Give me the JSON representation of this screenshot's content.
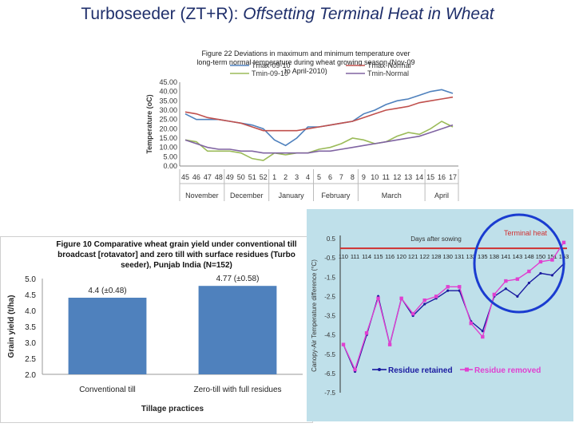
{
  "slide": {
    "title_main": "Turboseeder (ZT+R): ",
    "title_sub": "Offsetting Terminal Heat in Wheat"
  },
  "chart_data": [
    {
      "type": "line",
      "title": "Figure 22 Deviations in maximum and minimum temperature over long-term normal temperature during wheat growing season (Nov-09 to April-2010)",
      "title_lines": [
        "Figure 22 Deviations in maximum and minimum temperature over",
        "long-term normal temperature during wheat growing season (Nov-09",
        "to April-2010)"
      ],
      "ylabel": "Temperature (oC)",
      "ylim": [
        0,
        45
      ],
      "y_ticks": [
        "0.00",
        "5.00",
        "10.00",
        "15.00",
        "20.00",
        "25.00",
        "30.00",
        "35.00",
        "40.00",
        "45.00"
      ],
      "x": [
        "45",
        "46",
        "47",
        "48",
        "49",
        "50",
        "51",
        "52",
        "1",
        "2",
        "3",
        "4",
        "5",
        "6",
        "7",
        "8",
        "9",
        "10",
        "11",
        "12",
        "13",
        "14",
        "15",
        "16",
        "17"
      ],
      "months": [
        "November",
        "December",
        "January",
        "February",
        "March",
        "April"
      ],
      "series": [
        {
          "name": "Tmax-09-10",
          "color": "#4f81bd",
          "values": [
            28,
            25,
            25,
            25,
            24,
            23,
            22,
            20,
            14,
            11,
            15,
            21,
            21,
            22,
            23,
            24,
            28,
            30,
            33,
            35,
            36,
            38,
            40,
            41,
            39
          ]
        },
        {
          "name": "Tmax-Normal",
          "color": "#c0504d",
          "values": [
            29,
            28,
            26,
            25,
            24,
            23,
            21,
            19,
            19,
            19,
            19,
            20,
            21,
            22,
            23,
            24,
            26,
            28,
            30,
            31,
            32,
            34,
            35,
            36,
            37
          ]
        },
        {
          "name": "Tmin-09-10",
          "color": "#9bbb59",
          "values": [
            14,
            13,
            8,
            8,
            8,
            7,
            4,
            3,
            7,
            6,
            7,
            7,
            9,
            10,
            12,
            15,
            14,
            12,
            13,
            16,
            18,
            17,
            20,
            24,
            21
          ]
        },
        {
          "name": "Tmin-Normal",
          "color": "#8064a2",
          "values": [
            14,
            12,
            10,
            9,
            9,
            8,
            8,
            7,
            7,
            7,
            7,
            7,
            8,
            8,
            9,
            10,
            11,
            12,
            13,
            14,
            15,
            16,
            18,
            20,
            22
          ]
        }
      ]
    },
    {
      "type": "bar",
      "title": "Figure 10 Comparative wheat grain yield under conventional till broadcast [rotavator] and zero till with surface residues (Turbo seeder), Punjab India (N=152)",
      "title_lines": [
        "Figure 10 Comparative wheat grain yield under conventional till",
        "broadcast [rotavator] and zero till with surface residues (Turbo",
        "seeder), Punjab India (N=152)"
      ],
      "categories": [
        "Conventional till",
        "Zero-till with full residues"
      ],
      "values": [
        4.4,
        4.77
      ],
      "data_labels": [
        "4.4 (±0.48)",
        "4.77 (±0.58)"
      ],
      "ylabel": "Grain yield (t/ha)",
      "xlabel": "Tillage practices",
      "ylim": [
        2.0,
        5.0
      ],
      "y_ticks": [
        "2.0",
        "2.5",
        "3.0",
        "3.5",
        "4.0",
        "4.5",
        "5.0"
      ],
      "color": "#4f81bd"
    },
    {
      "type": "line",
      "xlabel": "Days after sowing",
      "ylabel": "Canopy-Air Temperature difference (°C)",
      "ylim": [
        -7.5,
        0.5
      ],
      "y_ticks": [
        "0.5",
        "-0.5",
        "-1.5",
        "-2.5",
        "-3.5",
        "-4.5",
        "-5.5",
        "-6.5",
        "-7.5"
      ],
      "x": [
        "110",
        "111",
        "114",
        "115",
        "116",
        "120",
        "121",
        "122",
        "128",
        "130",
        "131",
        "132",
        "135",
        "138",
        "141",
        "143",
        "148",
        "150",
        "151",
        "153"
      ],
      "annotation": "Terminal heat",
      "series": [
        {
          "name": "Residue retained",
          "color": "#1a1aa0",
          "values": [
            -5.0,
            -6.4,
            -4.5,
            -2.5,
            -5.0,
            -2.6,
            -3.5,
            -2.9,
            -2.6,
            -2.2,
            -2.2,
            -3.8,
            -4.3,
            -2.5,
            -2.1,
            -2.5,
            -1.8,
            -1.3,
            -1.4,
            -0.8
          ]
        },
        {
          "name": "Residue removed",
          "color": "#e040d0",
          "values": [
            -5.0,
            -6.3,
            -4.4,
            -2.6,
            -5.0,
            -2.6,
            -3.4,
            -2.7,
            -2.5,
            -2.0,
            -2.0,
            -3.9,
            -4.6,
            -2.4,
            -1.7,
            -1.6,
            -1.2,
            -0.7,
            -0.6,
            0.3
          ]
        }
      ]
    }
  ]
}
